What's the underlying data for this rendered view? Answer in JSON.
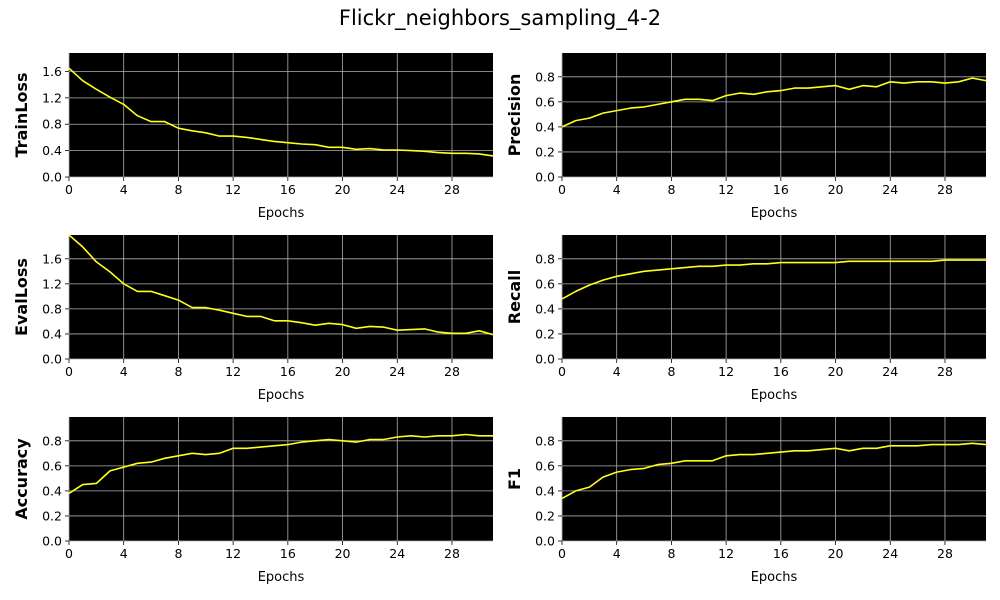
{
  "title": "Flickr_neighbors_sampling_4-2",
  "colors": {
    "plot_bg": "#000000",
    "line": "#ffff1a",
    "grid": "#b0b0b0"
  },
  "chart_data": [
    {
      "type": "line",
      "xlabel": "Epochs",
      "ylabel": "TrainLoss",
      "xlim": [
        0,
        31
      ],
      "ylim": [
        0,
        1.88
      ],
      "xticks": [
        0,
        4,
        8,
        12,
        16,
        20,
        24,
        28
      ],
      "yticks": [
        0.0,
        0.4,
        0.8,
        1.2,
        1.6
      ],
      "ytick_labels": [
        "0.0",
        "0.4",
        "0.8",
        "1.2",
        "1.6"
      ],
      "grid": true,
      "x": [
        0,
        1,
        2,
        3,
        4,
        5,
        6,
        7,
        8,
        9,
        10,
        11,
        12,
        13,
        14,
        15,
        16,
        17,
        18,
        19,
        20,
        21,
        22,
        23,
        24,
        25,
        26,
        27,
        28,
        29,
        30,
        31
      ],
      "y": [
        1.65,
        1.46,
        1.33,
        1.21,
        1.1,
        0.93,
        0.84,
        0.84,
        0.74,
        0.7,
        0.67,
        0.62,
        0.62,
        0.6,
        0.57,
        0.54,
        0.52,
        0.5,
        0.49,
        0.45,
        0.45,
        0.42,
        0.43,
        0.41,
        0.41,
        0.4,
        0.39,
        0.37,
        0.36,
        0.36,
        0.35,
        0.32
      ]
    },
    {
      "type": "line",
      "xlabel": "Epochs",
      "ylabel": "Precision",
      "xlim": [
        0,
        31
      ],
      "ylim": [
        0,
        0.99
      ],
      "xticks": [
        0,
        4,
        8,
        12,
        16,
        20,
        24,
        28
      ],
      "yticks": [
        0.0,
        0.2,
        0.4,
        0.6,
        0.8
      ],
      "ytick_labels": [
        "0.0",
        "0.2",
        "0.4",
        "0.6",
        "0.8"
      ],
      "grid": true,
      "x": [
        0,
        1,
        2,
        3,
        4,
        5,
        6,
        7,
        8,
        9,
        10,
        11,
        12,
        13,
        14,
        15,
        16,
        17,
        18,
        19,
        20,
        21,
        22,
        23,
        24,
        25,
        26,
        27,
        28,
        29,
        30,
        31
      ],
      "y": [
        0.4,
        0.45,
        0.47,
        0.51,
        0.53,
        0.55,
        0.56,
        0.58,
        0.6,
        0.62,
        0.62,
        0.61,
        0.65,
        0.67,
        0.66,
        0.68,
        0.69,
        0.71,
        0.71,
        0.72,
        0.73,
        0.7,
        0.73,
        0.72,
        0.76,
        0.75,
        0.76,
        0.76,
        0.75,
        0.76,
        0.79,
        0.77
      ]
    },
    {
      "type": "line",
      "xlabel": "Epochs",
      "ylabel": "EvalLoss",
      "xlim": [
        0,
        31
      ],
      "ylim": [
        0,
        1.98
      ],
      "xticks": [
        0,
        4,
        8,
        12,
        16,
        20,
        24,
        28
      ],
      "yticks": [
        0.0,
        0.4,
        0.8,
        1.2,
        1.6
      ],
      "ytick_labels": [
        "0.0",
        "0.4",
        "0.8",
        "1.2",
        "1.6"
      ],
      "grid": true,
      "x": [
        0,
        1,
        2,
        3,
        4,
        5,
        6,
        7,
        8,
        9,
        10,
        11,
        12,
        13,
        14,
        15,
        16,
        17,
        18,
        19,
        20,
        21,
        22,
        23,
        24,
        25,
        26,
        27,
        28,
        29,
        30,
        31
      ],
      "y": [
        1.98,
        1.79,
        1.55,
        1.39,
        1.2,
        1.08,
        1.08,
        1.01,
        0.94,
        0.82,
        0.82,
        0.78,
        0.73,
        0.68,
        0.68,
        0.61,
        0.61,
        0.58,
        0.54,
        0.57,
        0.55,
        0.49,
        0.52,
        0.51,
        0.46,
        0.47,
        0.48,
        0.43,
        0.41,
        0.41,
        0.45,
        0.39
      ]
    },
    {
      "type": "line",
      "xlabel": "Epochs",
      "ylabel": "Recall",
      "xlim": [
        0,
        31
      ],
      "ylim": [
        0,
        0.99
      ],
      "xticks": [
        0,
        4,
        8,
        12,
        16,
        20,
        24,
        28
      ],
      "yticks": [
        0.0,
        0.2,
        0.4,
        0.6,
        0.8
      ],
      "ytick_labels": [
        "0.0",
        "0.2",
        "0.4",
        "0.6",
        "0.8"
      ],
      "grid": true,
      "x": [
        0,
        1,
        2,
        3,
        4,
        5,
        6,
        7,
        8,
        9,
        10,
        11,
        12,
        13,
        14,
        15,
        16,
        17,
        18,
        19,
        20,
        21,
        22,
        23,
        24,
        25,
        26,
        27,
        28,
        29,
        30,
        31
      ],
      "y": [
        0.48,
        0.54,
        0.59,
        0.63,
        0.66,
        0.68,
        0.7,
        0.71,
        0.72,
        0.73,
        0.74,
        0.74,
        0.75,
        0.75,
        0.76,
        0.76,
        0.77,
        0.77,
        0.77,
        0.77,
        0.77,
        0.78,
        0.78,
        0.78,
        0.78,
        0.78,
        0.78,
        0.78,
        0.79,
        0.79,
        0.79,
        0.79
      ]
    },
    {
      "type": "line",
      "xlabel": "Epochs",
      "ylabel": "Accuracy",
      "xlim": [
        0,
        31
      ],
      "ylim": [
        0,
        0.99
      ],
      "xticks": [
        0,
        4,
        8,
        12,
        16,
        20,
        24,
        28
      ],
      "yticks": [
        0.0,
        0.2,
        0.4,
        0.6,
        0.8
      ],
      "ytick_labels": [
        "0.0",
        "0.2",
        "0.4",
        "0.6",
        "0.8"
      ],
      "grid": true,
      "x": [
        0,
        1,
        2,
        3,
        4,
        5,
        6,
        7,
        8,
        9,
        10,
        11,
        12,
        13,
        14,
        15,
        16,
        17,
        18,
        19,
        20,
        21,
        22,
        23,
        24,
        25,
        26,
        27,
        28,
        29,
        30,
        31
      ],
      "y": [
        0.38,
        0.45,
        0.46,
        0.56,
        0.59,
        0.62,
        0.63,
        0.66,
        0.68,
        0.7,
        0.69,
        0.7,
        0.74,
        0.74,
        0.75,
        0.76,
        0.77,
        0.79,
        0.8,
        0.81,
        0.8,
        0.79,
        0.81,
        0.81,
        0.83,
        0.84,
        0.83,
        0.84,
        0.84,
        0.85,
        0.84,
        0.84
      ]
    },
    {
      "type": "line",
      "xlabel": "Epochs",
      "ylabel": "F1",
      "xlim": [
        0,
        31
      ],
      "ylim": [
        0,
        0.99
      ],
      "xticks": [
        0,
        4,
        8,
        12,
        16,
        20,
        24,
        28
      ],
      "yticks": [
        0.0,
        0.2,
        0.4,
        0.6,
        0.8
      ],
      "ytick_labels": [
        "0.0",
        "0.2",
        "0.4",
        "0.6",
        "0.8"
      ],
      "grid": true,
      "x": [
        0,
        1,
        2,
        3,
        4,
        5,
        6,
        7,
        8,
        9,
        10,
        11,
        12,
        13,
        14,
        15,
        16,
        17,
        18,
        19,
        20,
        21,
        22,
        23,
        24,
        25,
        26,
        27,
        28,
        29,
        30,
        31
      ],
      "y": [
        0.34,
        0.4,
        0.43,
        0.51,
        0.55,
        0.57,
        0.58,
        0.61,
        0.62,
        0.64,
        0.64,
        0.64,
        0.68,
        0.69,
        0.69,
        0.7,
        0.71,
        0.72,
        0.72,
        0.73,
        0.74,
        0.72,
        0.74,
        0.74,
        0.76,
        0.76,
        0.76,
        0.77,
        0.77,
        0.77,
        0.78,
        0.77
      ]
    }
  ]
}
